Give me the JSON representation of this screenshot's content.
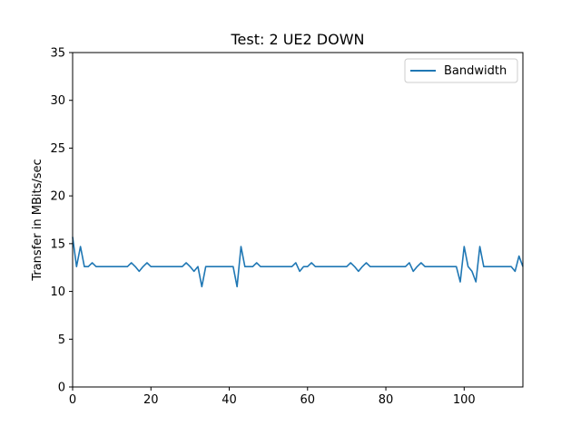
{
  "chart_data": {
    "type": "line",
    "title": "Test: 2 UE2 DOWN",
    "xlabel": "",
    "ylabel": "Transfer in MBits/sec",
    "xlim": [
      0,
      115
    ],
    "ylim": [
      0,
      35
    ],
    "xticks": [
      0,
      20,
      40,
      60,
      80,
      100
    ],
    "yticks": [
      0,
      5,
      10,
      15,
      20,
      25,
      30,
      35
    ],
    "grid": false,
    "legend": "top-right",
    "series": [
      {
        "name": "Bandwidth",
        "color": "#1f77b4",
        "x": [
          0,
          1,
          2,
          3,
          4,
          5,
          6,
          7,
          8,
          9,
          10,
          11,
          12,
          13,
          14,
          15,
          16,
          17,
          18,
          19,
          20,
          21,
          22,
          23,
          24,
          25,
          26,
          27,
          28,
          29,
          30,
          31,
          32,
          33,
          34,
          35,
          36,
          37,
          38,
          39,
          40,
          41,
          42,
          43,
          44,
          45,
          46,
          47,
          48,
          49,
          50,
          51,
          52,
          53,
          54,
          55,
          56,
          57,
          58,
          59,
          60,
          61,
          62,
          63,
          64,
          65,
          66,
          67,
          68,
          69,
          70,
          71,
          72,
          73,
          74,
          75,
          76,
          77,
          78,
          79,
          80,
          81,
          82,
          83,
          84,
          85,
          86,
          87,
          88,
          89,
          90,
          91,
          92,
          93,
          94,
          95,
          96,
          97,
          98,
          99,
          100,
          101,
          102,
          103,
          104,
          105,
          106,
          107,
          108,
          109,
          110,
          111,
          112,
          113,
          114,
          115
        ],
        "y": [
          15.7,
          12.6,
          14.7,
          12.6,
          12.6,
          13.0,
          12.6,
          12.6,
          12.6,
          12.6,
          12.6,
          12.6,
          12.6,
          12.6,
          12.6,
          13.0,
          12.6,
          12.1,
          12.6,
          13.0,
          12.6,
          12.6,
          12.6,
          12.6,
          12.6,
          12.6,
          12.6,
          12.6,
          12.6,
          13.0,
          12.6,
          12.1,
          12.6,
          10.5,
          12.6,
          12.6,
          12.6,
          12.6,
          12.6,
          12.6,
          12.6,
          12.6,
          10.5,
          14.7,
          12.6,
          12.6,
          12.6,
          13.0,
          12.6,
          12.6,
          12.6,
          12.6,
          12.6,
          12.6,
          12.6,
          12.6,
          12.6,
          13.0,
          12.1,
          12.6,
          12.6,
          13.0,
          12.6,
          12.6,
          12.6,
          12.6,
          12.6,
          12.6,
          12.6,
          12.6,
          12.6,
          13.0,
          12.6,
          12.1,
          12.6,
          13.0,
          12.6,
          12.6,
          12.6,
          12.6,
          12.6,
          12.6,
          12.6,
          12.6,
          12.6,
          12.6,
          13.0,
          12.1,
          12.6,
          13.0,
          12.6,
          12.6,
          12.6,
          12.6,
          12.6,
          12.6,
          12.6,
          12.6,
          12.6,
          11.0,
          14.7,
          12.6,
          12.1,
          11.0,
          14.7,
          12.6,
          12.6,
          12.6,
          12.6,
          12.6,
          12.6,
          12.6,
          12.6,
          12.1,
          13.7,
          12.6
        ]
      }
    ]
  }
}
